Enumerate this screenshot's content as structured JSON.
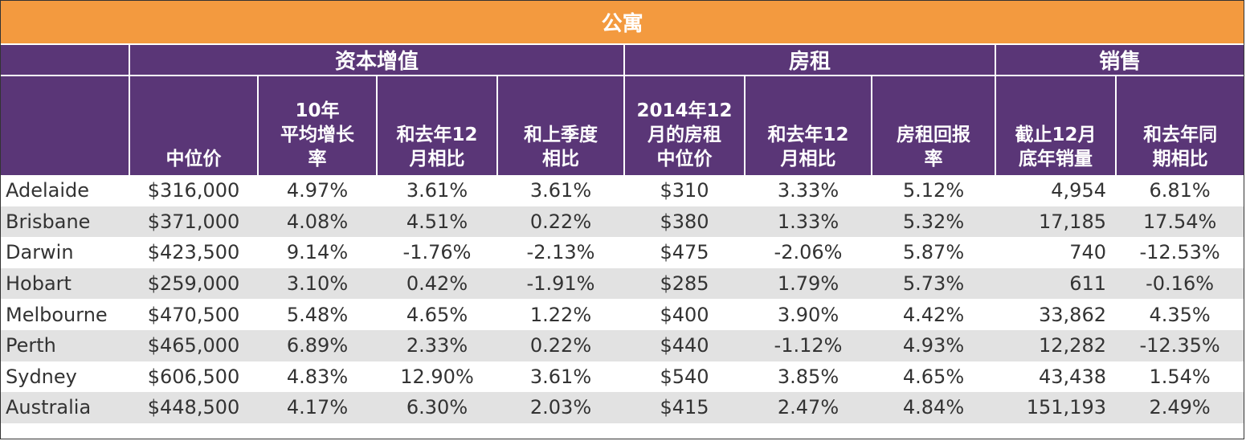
{
  "table": {
    "title": "公寓",
    "groups": [
      {
        "label": ""
      },
      {
        "label": "资本增值"
      },
      {
        "label": "房租"
      },
      {
        "label": "销售"
      }
    ],
    "columns": [
      {
        "label": ""
      },
      {
        "label": "中位价"
      },
      {
        "label": "10年\n平均增长\n率"
      },
      {
        "label": "和去年12\n月相比"
      },
      {
        "label": "和上季度\n相比"
      },
      {
        "label": "2014年12\n月的房租\n中位价"
      },
      {
        "label": "和去年12\n月相比"
      },
      {
        "label": "房租回报\n率"
      },
      {
        "label": "截止12月\n底年销量"
      },
      {
        "label": "和去年同\n期相比"
      }
    ],
    "rows": [
      {
        "city": "Adelaide",
        "median_price": "$316,000",
        "growth_10y": "4.97%",
        "vs_dec": "3.61%",
        "vs_quarter": "3.61%",
        "rent_median": "$310",
        "rent_vs_dec": "3.33%",
        "rent_yield": "5.12%",
        "sales": "4,954",
        "sales_vs": "6.81%"
      },
      {
        "city": "Brisbane",
        "median_price": "$371,000",
        "growth_10y": "4.08%",
        "vs_dec": "4.51%",
        "vs_quarter": "0.22%",
        "rent_median": "$380",
        "rent_vs_dec": "1.33%",
        "rent_yield": "5.32%",
        "sales": "17,185",
        "sales_vs": "17.54%"
      },
      {
        "city": "Darwin",
        "median_price": "$423,500",
        "growth_10y": "9.14%",
        "vs_dec": "-1.76%",
        "vs_quarter": "-2.13%",
        "rent_median": "$475",
        "rent_vs_dec": "-2.06%",
        "rent_yield": "5.87%",
        "sales": "740",
        "sales_vs": "-12.53%"
      },
      {
        "city": "Hobart",
        "median_price": "$259,000",
        "growth_10y": "3.10%",
        "vs_dec": "0.42%",
        "vs_quarter": "-1.91%",
        "rent_median": "$285",
        "rent_vs_dec": "1.79%",
        "rent_yield": "5.73%",
        "sales": "611",
        "sales_vs": "-0.16%"
      },
      {
        "city": "Melbourne",
        "median_price": "$470,500",
        "growth_10y": "5.48%",
        "vs_dec": "4.65%",
        "vs_quarter": "1.22%",
        "rent_median": "$400",
        "rent_vs_dec": "3.90%",
        "rent_yield": "4.42%",
        "sales": "33,862",
        "sales_vs": "4.35%"
      },
      {
        "city": "Perth",
        "median_price": "$465,000",
        "growth_10y": "6.89%",
        "vs_dec": "2.33%",
        "vs_quarter": "0.22%",
        "rent_median": "$440",
        "rent_vs_dec": "-1.12%",
        "rent_yield": "4.93%",
        "sales": "12,282",
        "sales_vs": "-12.35%"
      },
      {
        "city": "Sydney",
        "median_price": "$606,500",
        "growth_10y": "4.83%",
        "vs_dec": "12.90%",
        "vs_quarter": "3.61%",
        "rent_median": "$540",
        "rent_vs_dec": "3.85%",
        "rent_yield": "4.65%",
        "sales": "43,438",
        "sales_vs": "1.54%"
      },
      {
        "city": "Australia",
        "median_price": "$448,500",
        "growth_10y": "4.17%",
        "vs_dec": "6.30%",
        "vs_quarter": "2.03%",
        "rent_median": "$415",
        "rent_vs_dec": "2.47%",
        "rent_yield": "4.84%",
        "sales": "151,193",
        "sales_vs": "2.49%"
      }
    ]
  },
  "colors": {
    "title_bg": "#f39a3f",
    "header_bg": "#5a3677",
    "stripe": "#e2e2e2"
  }
}
